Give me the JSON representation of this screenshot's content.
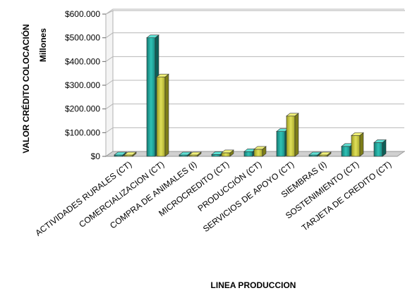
{
  "chart_data": {
    "type": "bar",
    "three_d": true,
    "xlabel": "LINEA PRODUCCION",
    "ylabel": "VALOR CRÉDITO COLOCACIÓN",
    "ylabel_unit": "Millones",
    "ylim": [
      0,
      600000
    ],
    "yticks": [
      "$0",
      "$100.000",
      "$200.000",
      "$300.000",
      "$400.000",
      "$500.000",
      "$600.000"
    ],
    "ytick_values": [
      0,
      100000,
      200000,
      300000,
      400000,
      500000,
      600000
    ],
    "grid": true,
    "legend": "none",
    "categories": [
      "ACTIVIDADES RURALES (CT)",
      "COMERCIALIZACION (CT)",
      "COMPRA DE ANIMALES (I)",
      "MICROCREDITO (CT)",
      "PRODUCCIÓN (CT)",
      "SERVICIOS DE APOYO (CT)",
      "SIEMBRAS (I)",
      "SOSTENIMIENTO (CT)",
      "TARJETA DE CREDITO (CT)"
    ],
    "series": [
      {
        "color": "#1fa49a",
        "values": [
          1000,
          500000,
          0,
          8000,
          20000,
          105000,
          0,
          42000,
          58000
        ]
      },
      {
        "color": "#c9c93a",
        "values": [
          1000,
          335000,
          1000,
          15000,
          30000,
          170000,
          0,
          88000,
          null
        ]
      }
    ]
  }
}
